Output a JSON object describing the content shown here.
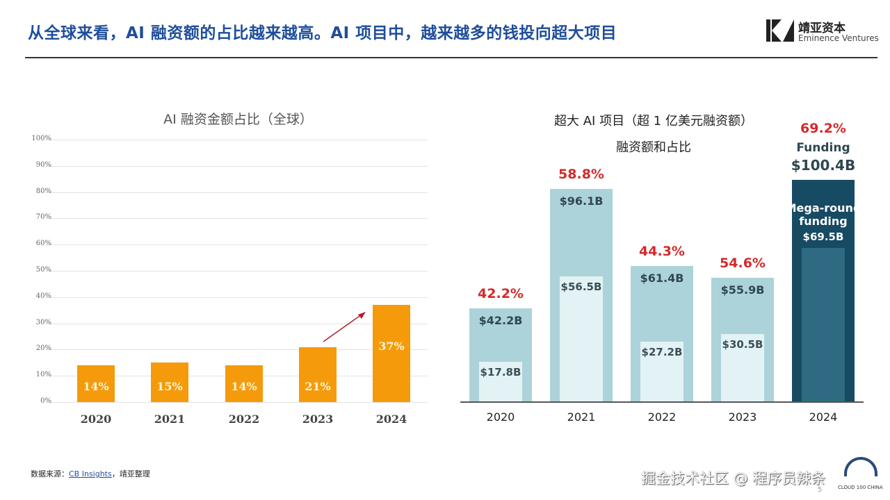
{
  "header": {
    "title": "从全球来看，AI 融资额的占比越来越高。AI 项目中，越来越多的钱投向超大项目",
    "logo_cn": "靖亚资本",
    "logo_en": "Eminence Ventures"
  },
  "footer": {
    "source_prefix": "数据来源：",
    "source_link": "CB Insights",
    "source_suffix": "，靖亚整理",
    "page": "5",
    "watermark": "掘金技术社区 @ 程序员辣条",
    "badge": "CLOUD 100 CHINA"
  },
  "colors": {
    "orange": "#f59b0b",
    "light_teal": "#acd3d9",
    "pale": "#e3f2f4",
    "dark_navy": "#174a63",
    "mid_teal": "#2e6b82",
    "red": "#d42a2a"
  },
  "chart_data": [
    {
      "type": "bar",
      "title": "AI 融资金额占比（全球）",
      "categories": [
        "2020",
        "2021",
        "2022",
        "2023",
        "2024"
      ],
      "values": [
        14,
        15,
        14,
        21,
        37
      ],
      "data_labels": [
        "14%",
        "15%",
        "14%",
        "21%",
        "37%"
      ],
      "ylim": [
        0,
        100
      ],
      "yticks": [
        "0%",
        "10%",
        "20%",
        "30%",
        "40%",
        "50%",
        "60%",
        "70%",
        "80%",
        "90%",
        "100%"
      ],
      "grid": true,
      "annotation": "arrow from 2023 to 2024"
    },
    {
      "type": "bar",
      "title": "超大 AI 项目（超 1 亿美元融资额）",
      "subtitle": "融资额和占比",
      "categories": [
        "2020",
        "2021",
        "2022",
        "2023",
        "2024"
      ],
      "series": [
        {
          "values": [
            42.2,
            96.1,
            61.4,
            55.9,
            100.4
          ],
          "labels": [
            "$42.2B",
            "$96.1B",
            "$61.4B",
            "$55.9B",
            "$100.4B"
          ]
        },
        {
          "values": [
            17.8,
            56.5,
            27.2,
            30.5,
            69.5
          ],
          "labels": [
            "$17.8B",
            "$56.5B",
            "$27.2B",
            "$30.5B",
            "$69.5B"
          ]
        }
      ],
      "share_labels": [
        "42.2%",
        "58.8%",
        "44.3%",
        "54.6%",
        "69.2%"
      ],
      "highlight_labels": {
        "funding": "Funding",
        "mega": "Mega-round funding"
      }
    }
  ]
}
